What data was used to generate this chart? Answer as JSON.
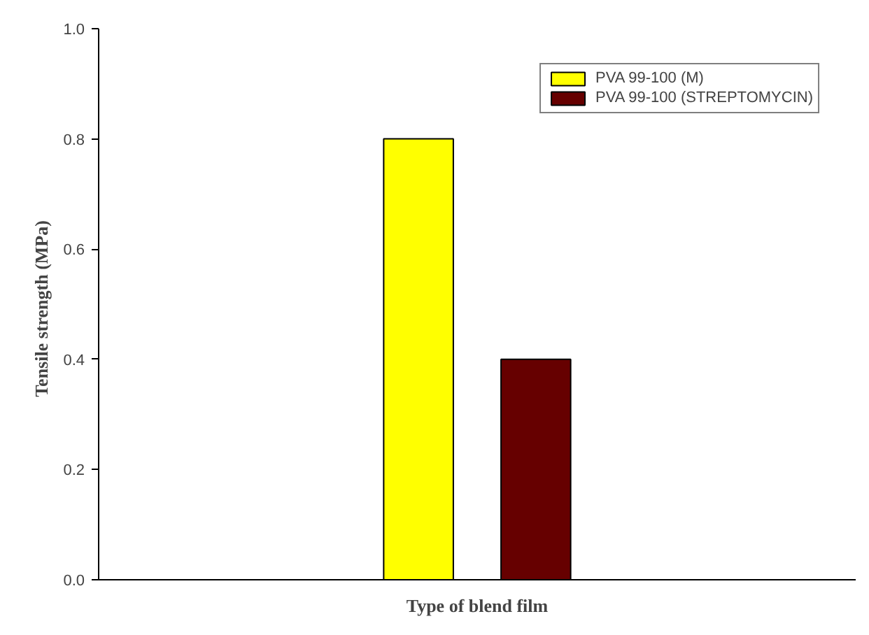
{
  "chart_data": {
    "type": "bar",
    "xlabel": "Type of blend film",
    "ylabel": "Tensile  strength  (MPa)",
    "categories": [
      null
    ],
    "series": [
      {
        "name": "PVA 99-100 (M)",
        "color": "#ffff00",
        "values": [
          0.8
        ]
      },
      {
        "name": "PVA 99-100 (STREPTOMYCIN)",
        "color": "#660000",
        "values": [
          0.4
        ]
      }
    ],
    "ylim": [
      0,
      1
    ],
    "yticks": [
      {
        "value": 0,
        "label": "0.0"
      },
      {
        "value": 0.2,
        "label": "0.2"
      },
      {
        "value": 0.4,
        "label": "0.4"
      },
      {
        "value": 0.6,
        "label": "0.6"
      },
      {
        "value": 0.8,
        "label": "0.8"
      },
      {
        "value": 1,
        "label": "1.0"
      }
    ],
    "grid": false,
    "legend": "top right",
    "tick_labels": "y"
  }
}
